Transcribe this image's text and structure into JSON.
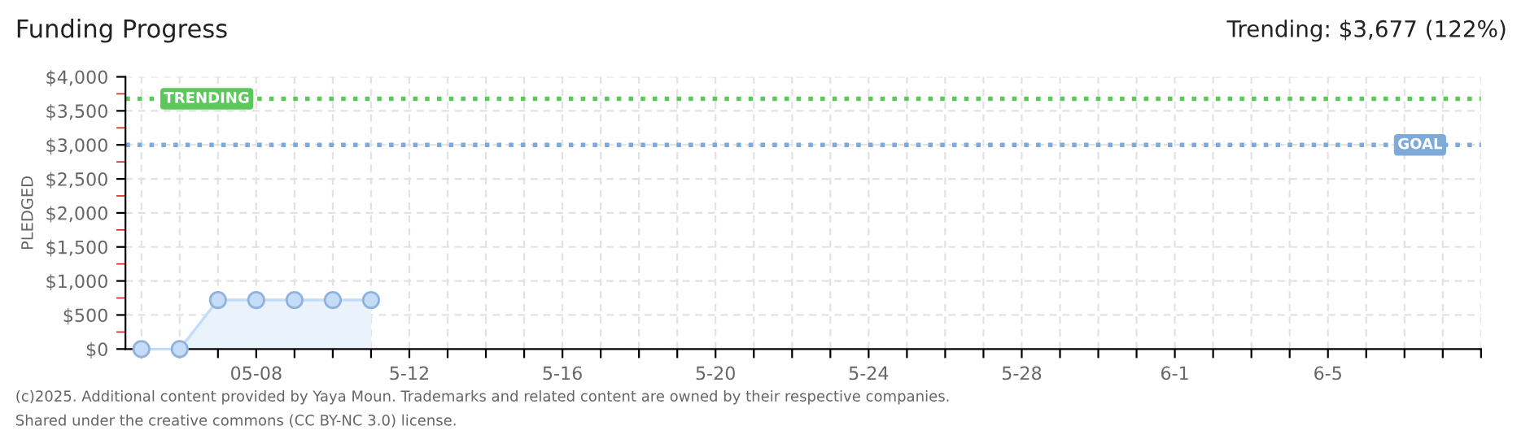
{
  "chart_data": {
    "type": "area",
    "title": "Funding Progress",
    "ylabel": "PLEDGED",
    "annotations": [
      "Trending: $3,677 (122%)",
      "(c)2025. Additional content provided by Yaya Moun. Trademarks and related content are owned by their respective companies.",
      "Shared under the creative commons (CC BY-NC 3.0) license."
    ],
    "x": [
      "2025-05-05",
      "2025-05-06",
      "2025-05-07",
      "2025-05-08",
      "2025-05-09",
      "2025-05-10",
      "2025-05-11"
    ],
    "series": [
      {
        "color": "#eaf2fc",
        "values": [
          0,
          0,
          720,
          720,
          720,
          720,
          720
        ]
      }
    ],
    "marker": "circle",
    "xlim": [
      "2025-05-04T14:00",
      "2025-06-09"
    ],
    "xticks": [
      {
        "value": "2025-05-05",
        "label": null
      },
      {
        "value": "2025-05-06",
        "label": null
      },
      {
        "value": "2025-05-07",
        "label": null
      },
      {
        "value": "2025-05-08",
        "label": "05-08"
      },
      {
        "value": "2025-05-09",
        "label": null
      },
      {
        "value": "2025-05-10",
        "label": null
      },
      {
        "value": "2025-05-11",
        "label": null
      },
      {
        "value": "2025-05-12",
        "label": "5-12"
      },
      {
        "value": "2025-05-13",
        "label": null
      },
      {
        "value": "2025-05-14",
        "label": null
      },
      {
        "value": "2025-05-15",
        "label": null
      },
      {
        "value": "2025-05-16",
        "label": "5-16"
      },
      {
        "value": "2025-05-17",
        "label": null
      },
      {
        "value": "2025-05-18",
        "label": null
      },
      {
        "value": "2025-05-19",
        "label": null
      },
      {
        "value": "2025-05-20",
        "label": "5-20"
      },
      {
        "value": "2025-05-21",
        "label": null
      },
      {
        "value": "2025-05-22",
        "label": null
      },
      {
        "value": "2025-05-23",
        "label": null
      },
      {
        "value": "2025-05-24",
        "label": "5-24"
      },
      {
        "value": "2025-05-25",
        "label": null
      },
      {
        "value": "2025-05-26",
        "label": null
      },
      {
        "value": "2025-05-27",
        "label": null
      },
      {
        "value": "2025-05-28",
        "label": "5-28"
      },
      {
        "value": "2025-05-29",
        "label": null
      },
      {
        "value": "2025-05-30",
        "label": null
      },
      {
        "value": "2025-05-31",
        "label": null
      },
      {
        "value": "2025-06-01",
        "label": "6-1"
      },
      {
        "value": "2025-06-02",
        "label": null
      },
      {
        "value": "2025-06-03",
        "label": null
      },
      {
        "value": "2025-06-04",
        "label": null
      },
      {
        "value": "2025-06-05",
        "label": "6-5"
      },
      {
        "value": "2025-06-06",
        "label": null
      },
      {
        "value": "2025-06-07",
        "label": null
      },
      {
        "value": "2025-06-08",
        "label": null
      },
      {
        "value": "2025-06-09",
        "label": null
      }
    ],
    "ylim": [
      0,
      4000
    ],
    "yticks": [
      {
        "value": 0,
        "label": "$0"
      },
      {
        "value": 250,
        "label": null
      },
      {
        "value": 500,
        "label": "$500"
      },
      {
        "value": 750,
        "label": null
      },
      {
        "value": 1000,
        "label": "$1,000"
      },
      {
        "value": 1250,
        "label": null
      },
      {
        "value": 1500,
        "label": "$1,500"
      },
      {
        "value": 1750,
        "label": null
      },
      {
        "value": 2000,
        "label": "$2,000"
      },
      {
        "value": 2250,
        "label": null
      },
      {
        "value": 2500,
        "label": "$2,500"
      },
      {
        "value": 2750,
        "label": null
      },
      {
        "value": 3000,
        "label": "$3,000"
      },
      {
        "value": 3250,
        "label": null
      },
      {
        "value": 3500,
        "label": "$3,500"
      },
      {
        "value": 3750,
        "label": null
      },
      {
        "value": 4000,
        "label": "$4,000"
      }
    ],
    "grid": true,
    "ref_lines": [
      {
        "axis": "y",
        "value": 3677,
        "label": "TRENDING",
        "color": "#5cc85c",
        "line_style": "dotted"
      },
      {
        "axis": "y",
        "value": 3000,
        "label": "GOAL",
        "color": "#7faad8",
        "line_style": "dotted"
      }
    ]
  }
}
